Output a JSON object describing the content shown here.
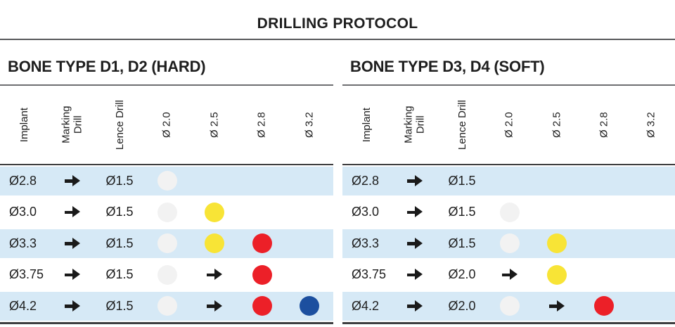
{
  "title": "DRILLING PROTOCOL",
  "colors": {
    "stripe_blue": "#d6e9f6",
    "dot_gray": "#f2f2f2",
    "dot_yellow": "#f8e436",
    "dot_red": "#ec2028",
    "dot_blue": "#1c4f9f",
    "arrow_black": "#1a1a1a",
    "rule_gray": "#6d6e71",
    "rule_dark": "#3e3e40",
    "text_dark": "#1e1e1e"
  },
  "chart_data": [
    {
      "type": "table",
      "title": "BONE TYPE D1, D2 (HARD)",
      "columns": [
        "Implant",
        "Marking\nDrill",
        "Lence Drill",
        "Ø 2.0",
        "Ø 2.5",
        "Ø 2.8",
        "Ø 3.2"
      ],
      "rows": [
        [
          "Ø2.8",
          "arrow",
          "Ø1.5",
          "dot:gray",
          "",
          "",
          ""
        ],
        [
          "Ø3.0",
          "arrow",
          "Ø1.5",
          "dot:gray",
          "dot:yellow",
          "",
          ""
        ],
        [
          "Ø3.3",
          "arrow",
          "Ø1.5",
          "dot:gray",
          "dot:yellow",
          "dot:red",
          ""
        ],
        [
          "Ø3.75",
          "arrow",
          "Ø1.5",
          "dot:gray",
          "arrow",
          "dot:red",
          ""
        ],
        [
          "Ø4.2",
          "arrow",
          "Ø1.5",
          "dot:gray",
          "arrow",
          "dot:red",
          "dot:blue"
        ]
      ]
    },
    {
      "type": "table",
      "title": "BONE TYPE D3, D4 (SOFT)",
      "columns": [
        "Implant",
        "Marking\nDrill",
        "Lence Drill",
        "Ø 2.0",
        "Ø 2.5",
        "Ø 2.8",
        "Ø 3.2"
      ],
      "rows": [
        [
          "Ø2.8",
          "arrow",
          "Ø1.5",
          "",
          "",
          "",
          ""
        ],
        [
          "Ø3.0",
          "arrow",
          "Ø1.5",
          "dot:gray",
          "",
          "",
          ""
        ],
        [
          "Ø3.3",
          "arrow",
          "Ø1.5",
          "dot:gray",
          "dot:yellow",
          "",
          ""
        ],
        [
          "Ø3.75",
          "arrow",
          "Ø2.0",
          "arrow",
          "dot:yellow",
          "",
          ""
        ],
        [
          "Ø4.2",
          "arrow",
          "Ø2.0",
          "dot:gray",
          "arrow",
          "dot:red",
          ""
        ]
      ]
    }
  ]
}
